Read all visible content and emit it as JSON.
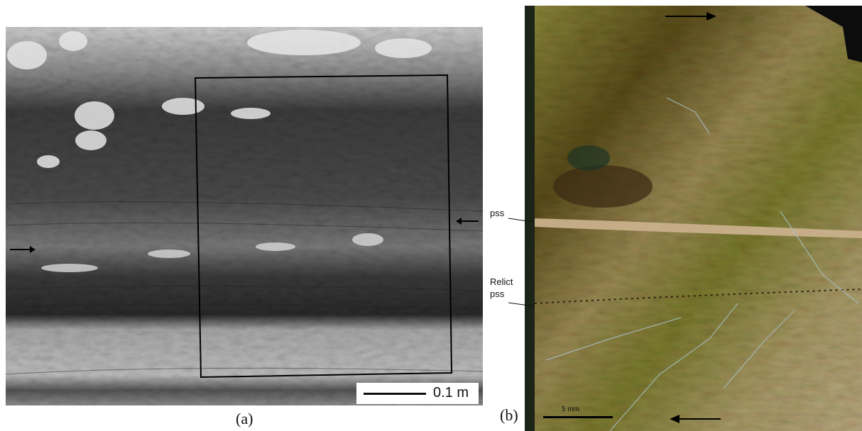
{
  "figure": {
    "panel_a": {
      "caption": "(a)",
      "scale_label": "0.1 m"
    },
    "panel_b": {
      "caption": "(b)",
      "scale_label": "5 mm",
      "label_pss": "pss",
      "label_relict_line1": "Relict",
      "label_relict_line2": "pss"
    },
    "colors": {
      "panel_a_dark": "#2e2e2e",
      "panel_a_light": "#d9d9d9",
      "panel_b_olive": "#6e6a2c",
      "panel_b_tan": "#b79e74",
      "panel_b_dark": "#3a2e14"
    }
  }
}
